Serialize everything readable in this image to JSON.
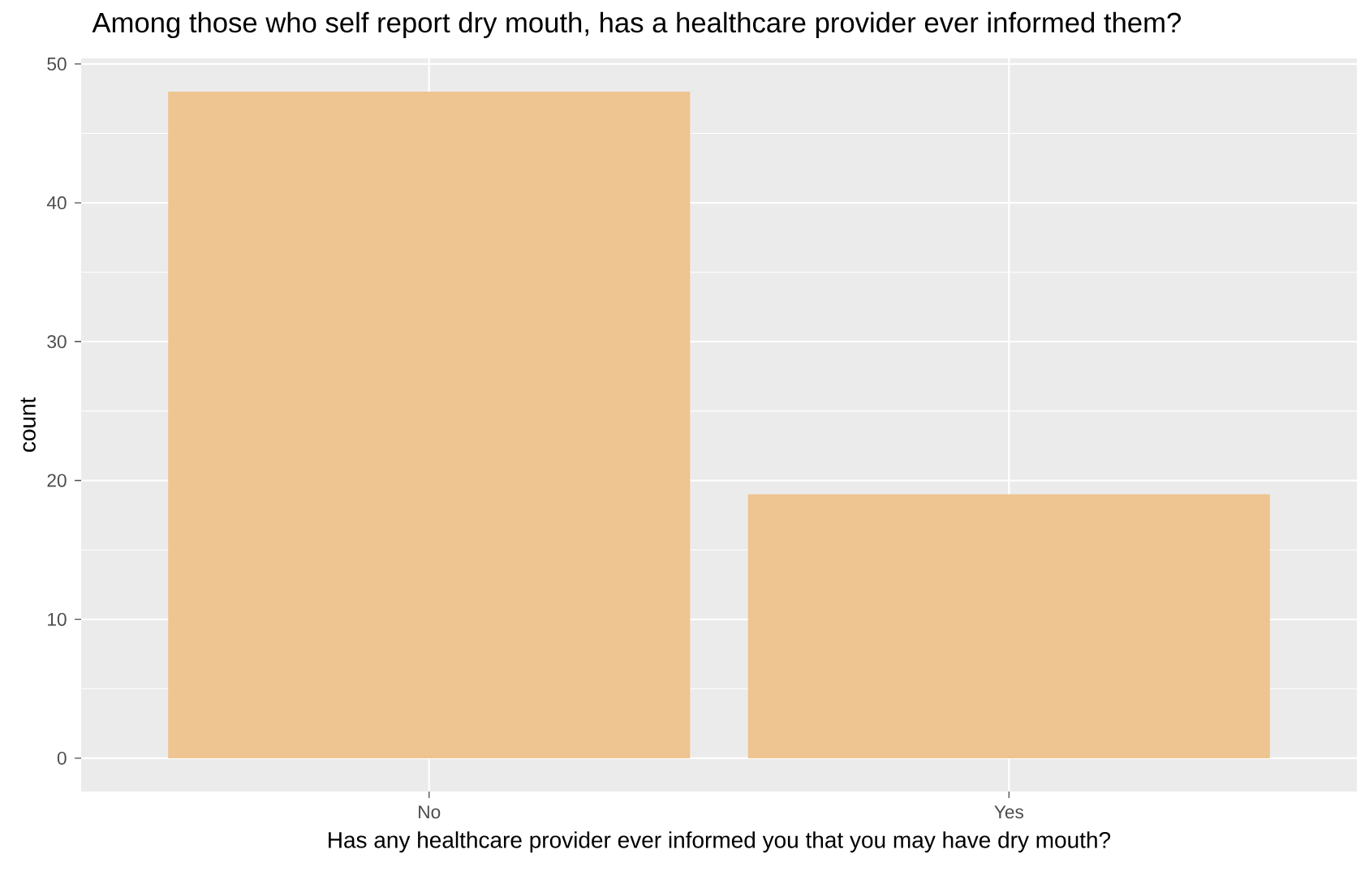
{
  "chart_data": {
    "type": "bar",
    "title": "Among those who self report dry mouth, has a healthcare provider ever informed them?",
    "xlabel": "Has any healthcare provider ever informed you that you may have dry mouth?",
    "ylabel": "count",
    "categories": [
      "No",
      "Yes"
    ],
    "values": [
      48,
      19
    ],
    "color": "#eec490",
    "ylim": [
      -2.4,
      50.4
    ],
    "yticks": [
      0,
      10,
      20,
      30,
      40,
      50
    ],
    "grid": true
  }
}
